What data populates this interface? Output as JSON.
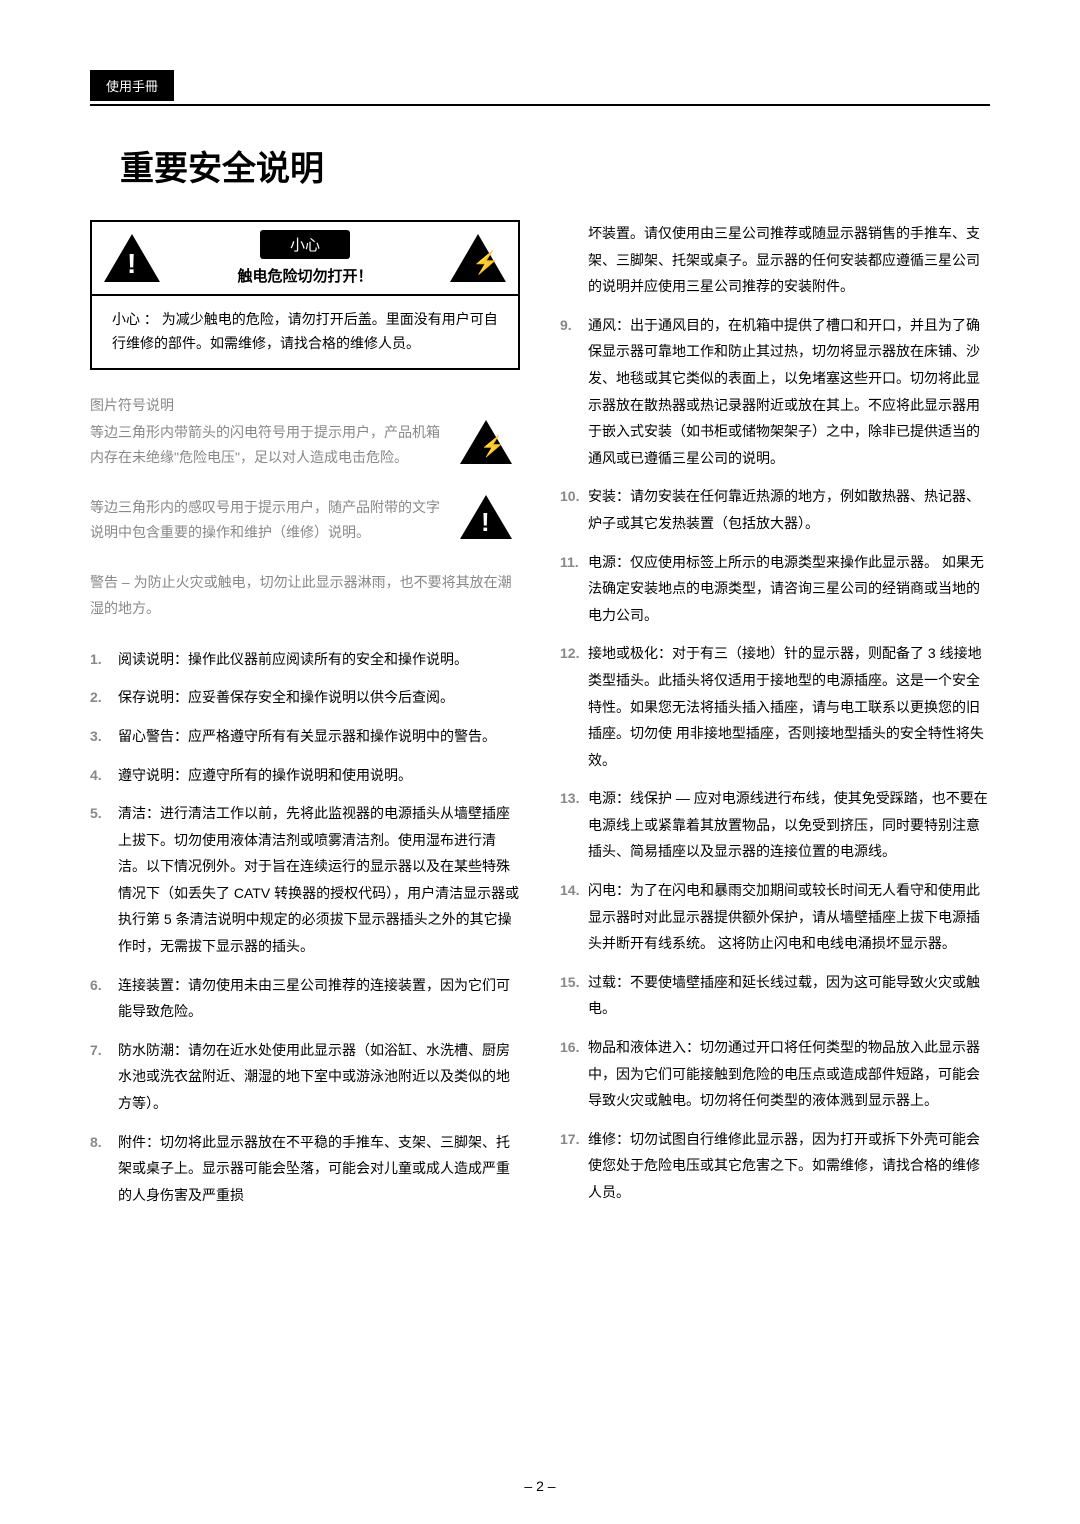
{
  "header": {
    "label": "使用手冊"
  },
  "title": "重要安全说明",
  "warning_box": {
    "caution_label": "小心",
    "shock_text": "触电危险切勿打开！",
    "bottom_label": "小心 ：",
    "bottom_text": "为减少触电的危险，请勿打开后盖。里面没有用户可自行维修的部件。如需维修，请找合格的维修人员。"
  },
  "icon_section_label": "图片符号说明",
  "lightning_desc": "等边三角形内带箭头的闪电符号用于提示用户，产品机箱内存在未绝缘\"危险电压\"，足以对人造成电击危险。",
  "exclaim_desc": "等边三角形内的感叹号用于提示用户，随产品附带的文字说明中包含重要的操作和维护（维修）说明。",
  "general_warning": {
    "label": "警告 – ",
    "text": "为防止火灾或触电，切勿让此显示器淋雨，也不要将其放在潮湿的地方。"
  },
  "instructions_left": [
    {
      "num": "1.",
      "text": "阅读说明：操作此仪器前应阅读所有的安全和操作说明。"
    },
    {
      "num": "2.",
      "text": "保存说明：应妥善保存安全和操作说明以供今后查阅。"
    },
    {
      "num": "3.",
      "text": "留心警告：应严格遵守所有有关显示器和操作说明中的警告。"
    },
    {
      "num": "4.",
      "text": "遵守说明：应遵守所有的操作说明和使用说明。"
    },
    {
      "num": "5.",
      "text": "清洁：进行清洁工作以前，先将此监视器的电源插头从墙壁插座上拔下。切勿使用液体清洁剂或喷雾清洁剂。使用湿布进行清洁。以下情况例外。对于旨在连续运行的显示器以及在某些特殊情况下（如丢失了 CATV 转换器的授权代码），用户清洁显示器或执行第 5 条清洁说明中规定的必须拔下显示器插头之外的其它操作时，无需拔下显示器的插头。"
    },
    {
      "num": "6.",
      "text": "连接装置：请勿使用未由三星公司推荐的连接装置，因为它们可能导致危险。"
    },
    {
      "num": "7.",
      "text": "防水防潮：请勿在近水处使用此显示器（如浴缸、水洗槽、厨房水池或洗衣盆附近、潮湿的地下室中或游泳池附近以及类似的地方等）。"
    },
    {
      "num": "8.",
      "text": "附件：切勿将此显示器放在不平稳的手推车、支架、三脚架、托架或桌子上。显示器可能会坠落，可能会对儿童或成人造成严重的人身伤害及严重损"
    }
  ],
  "instructions_right_continuation": "坏装置。请仅使用由三星公司推荐或随显示器销售的手推车、支架、三脚架、托架或桌子。显示器的任何安装都应遵循三星公司的说明并应使用三星公司推荐的安装附件。",
  "instructions_right": [
    {
      "num": "9.",
      "text": "通风：出于通风目的，在机箱中提供了槽口和开口，并且为了确保显示器可靠地工作和防止其过热，切勿将显示器放在床铺、沙发、地毯或其它类似的表面上，以免堵塞这些开口。切勿将此显示器放在散热器或热记录器附近或放在其上。不应将此显示器用于嵌入式安装（如书柜或储物架架子）之中，除非已提供适当的通风或已遵循三星公司的说明。"
    },
    {
      "num": "10.",
      "text": "安装：请勿安装在任何靠近热源的地方，例如散热器、热记器、炉子或其它发热装置（包括放大器）。"
    },
    {
      "num": "11.",
      "text": "电源：仅应使用标签上所示的电源类型来操作此显示器。 如果无法确定安装地点的电源类型，请咨询三星公司的经销商或当地的电力公司。"
    },
    {
      "num": "12.",
      "text": "接地或极化：对于有三（接地）针的显示器，则配备了 3 线接地类型插头。此插头将仅适用于接地型的电源插座。这是一个安全特性。如果您无法将插头插入插座，请与电工联系以更换您的旧插座。切勿使 用非接地型插座，否则接地型插头的安全特性将失效。"
    },
    {
      "num": "13.",
      "text": "电源：线保护 — 应对电源线进行布线，使其免受踩踏，也不要在电源线上或紧靠着其放置物品，以免受到挤压，同时要特别注意插头、简易插座以及显示器的连接位置的电源线。"
    },
    {
      "num": "14.",
      "text": "闪电：为了在闪电和暴雨交加期间或较长时间无人看守和使用此显示器时对此显示器提供额外保护，请从墙壁插座上拔下电源插头并断开有线系统。 这将防止闪电和电线电涌损坏显示器。"
    },
    {
      "num": "15.",
      "text": "过载：不要使墙壁插座和延长线过载，因为这可能导致火灾或触电。"
    },
    {
      "num": "16.",
      "text": "物品和液体进入：切勿通过开口将任何类型的物品放入此显示器中，因为它们可能接触到危险的电压点或造成部件短路，可能会导致火灾或触电。切勿将任何类型的液体溅到显示器上。"
    },
    {
      "num": "17.",
      "text": "维修：切勿试图自行维修此显示器，因为打开或拆下外壳可能会使您处于危险电压或其它危害之下。如需维修，请找合格的维修人员。"
    }
  ],
  "page_number": "– 2 –"
}
